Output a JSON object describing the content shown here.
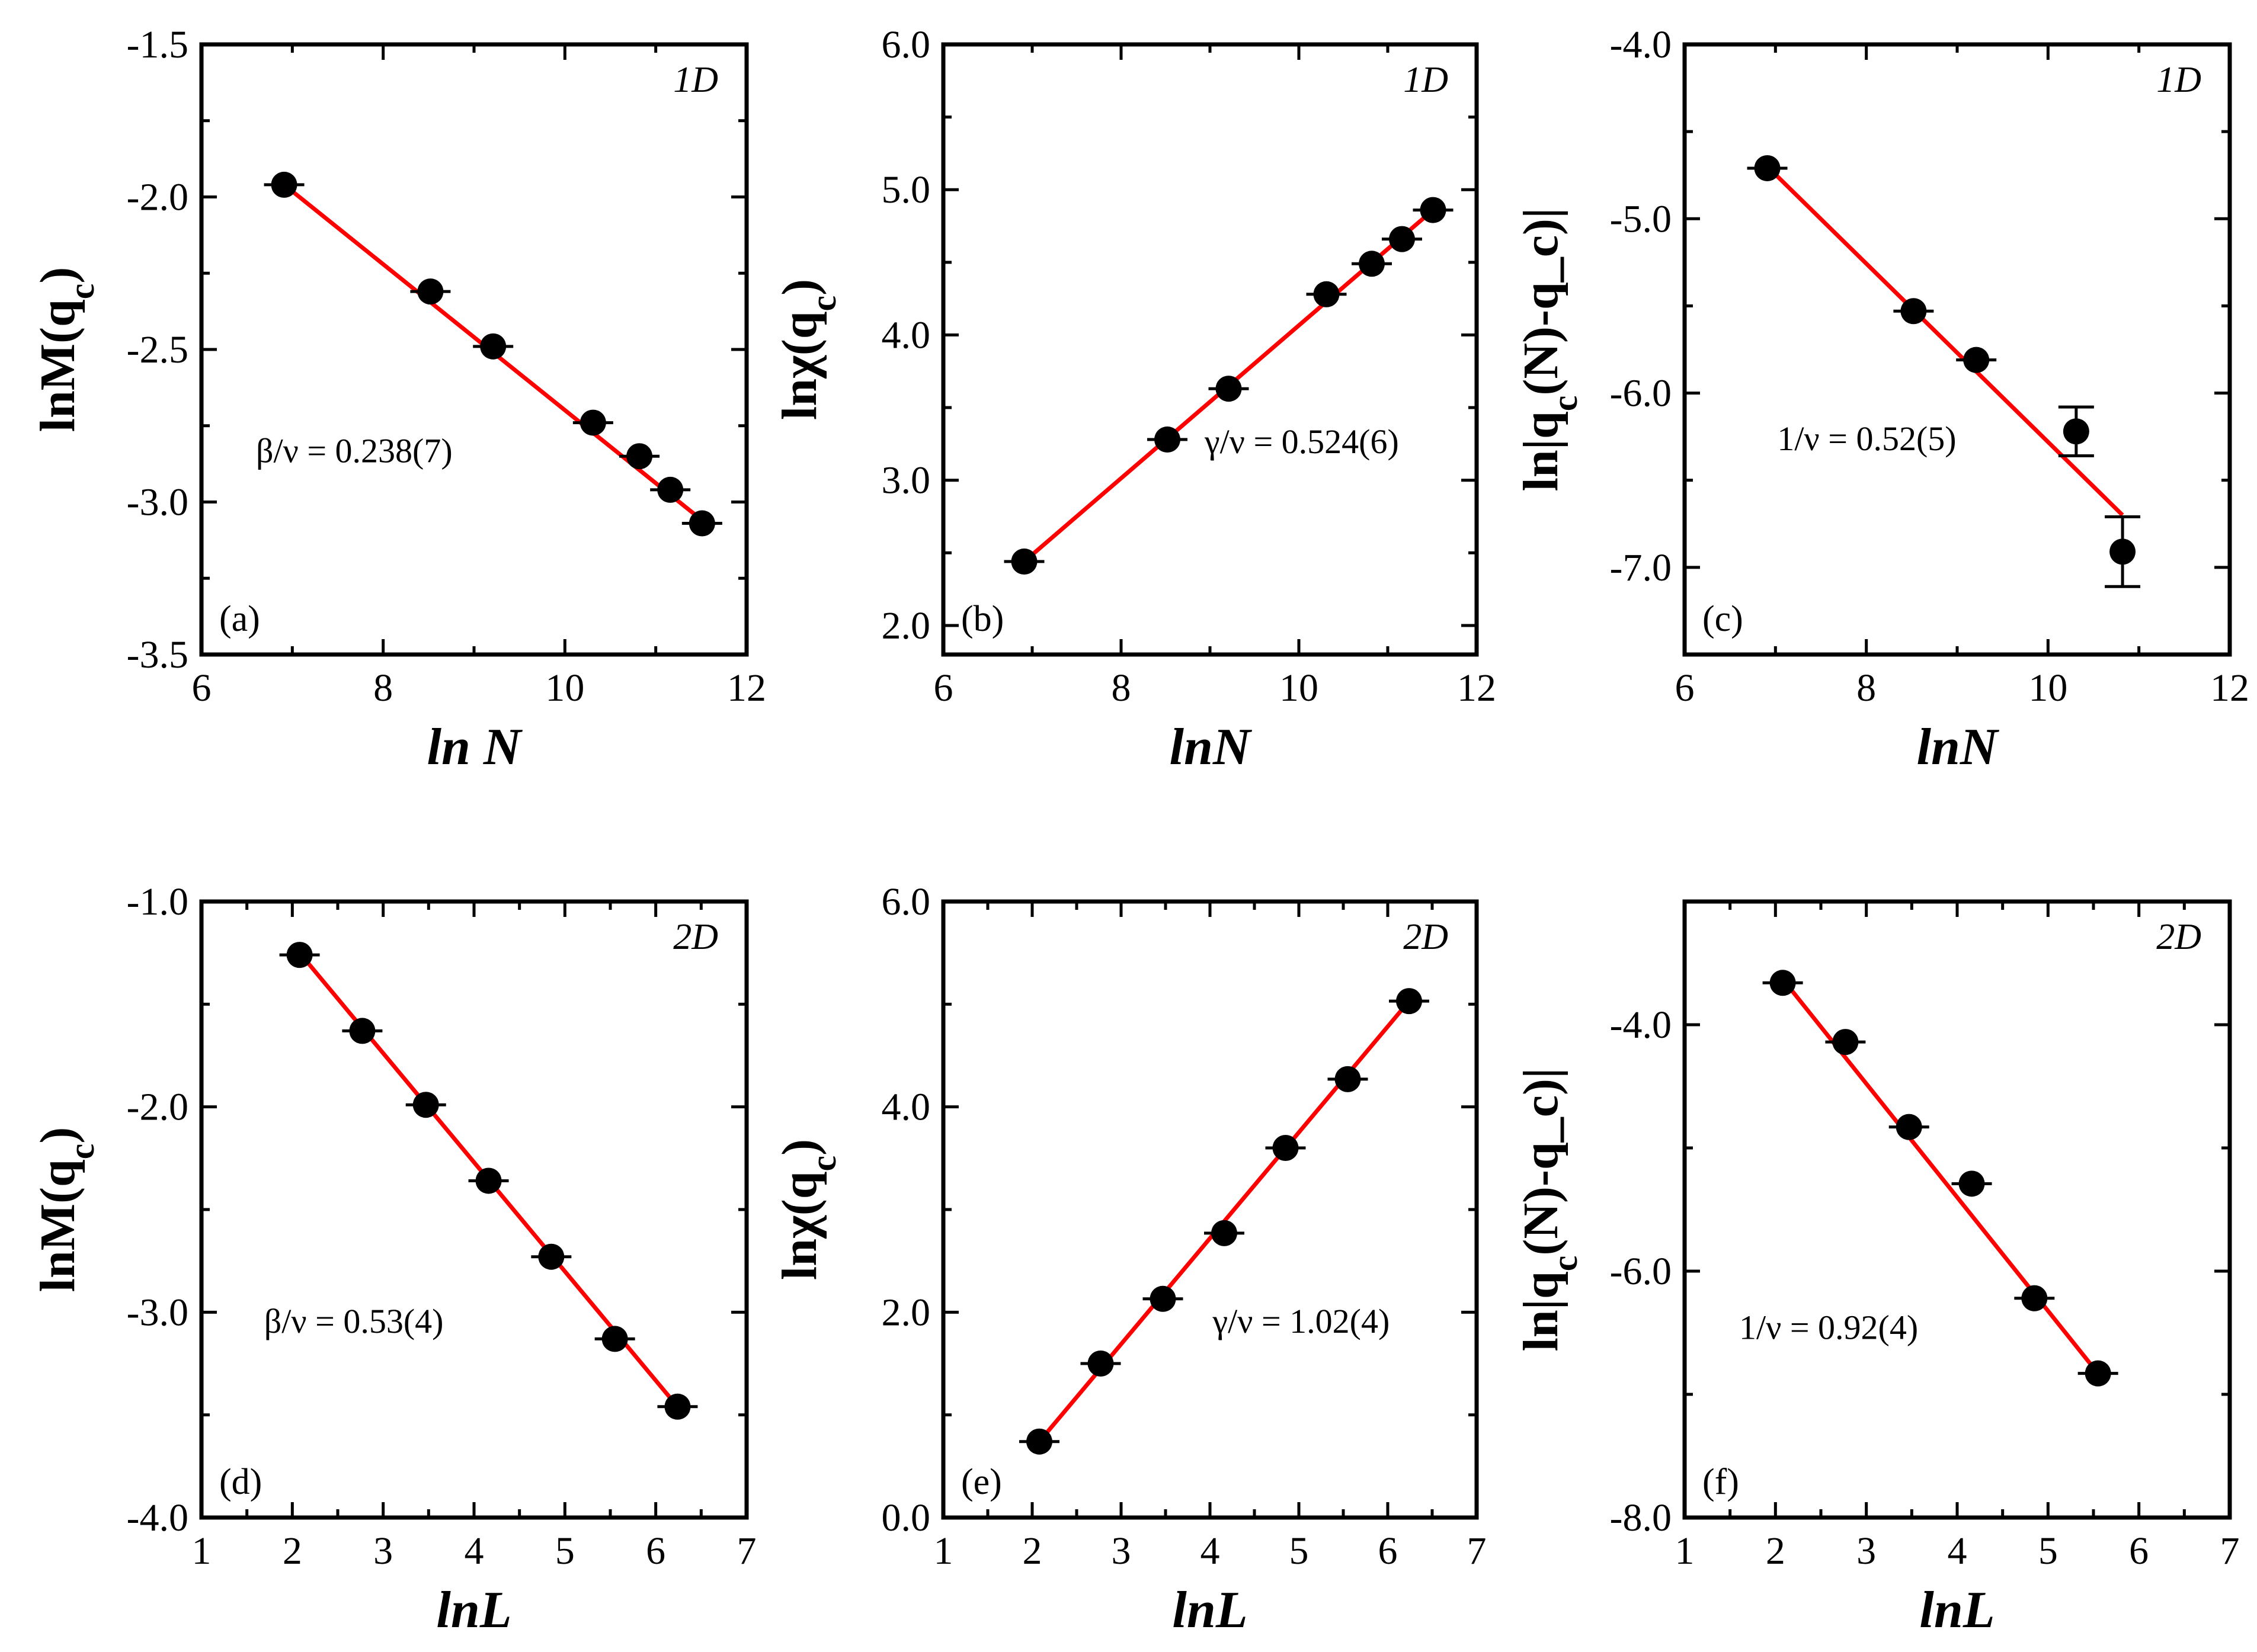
{
  "chart_data": [
    {
      "id": "a",
      "type": "scatter",
      "panel_label": "(a)",
      "dimension": "1D",
      "title": "",
      "xlabel": "ln N",
      "ylabel": "lnM(q_c)",
      "xlim": [
        6,
        12
      ],
      "ylim": [
        -3.5,
        -1.5
      ],
      "xticks": [
        6,
        8,
        10,
        12
      ],
      "xtick_labels": [
        "6",
        "8",
        "10",
        "12"
      ],
      "yticks": [
        -3.5,
        -3.0,
        -2.5,
        -2.0,
        -1.5
      ],
      "ytick_labels": [
        "-3.5",
        "-3.0",
        "-2.5",
        "-2.0",
        "-1.5"
      ],
      "annotation": "β/ν = 0.238(7)",
      "x": [
        6.91,
        8.52,
        9.21,
        10.31,
        10.82,
        11.16,
        11.51
      ],
      "y": [
        -1.96,
        -2.31,
        -2.49,
        -2.74,
        -2.85,
        -2.96,
        -3.07
      ],
      "yerr": [
        0,
        0,
        0,
        0,
        0,
        0,
        0
      ],
      "fit": {
        "x": [
          6.91,
          11.51
        ],
        "y": [
          -1.96,
          -3.06
        ]
      }
    },
    {
      "id": "b",
      "type": "scatter",
      "panel_label": "(b)",
      "dimension": "1D",
      "title": "",
      "xlabel": "lnN",
      "ylabel": "lnχ(q_c)",
      "xlim": [
        6,
        12
      ],
      "ylim": [
        1.8,
        6.0
      ],
      "xticks": [
        6,
        8,
        10,
        12
      ],
      "xtick_labels": [
        "6",
        "8",
        "10",
        "12"
      ],
      "yticks": [
        2.0,
        3.0,
        4.0,
        5.0,
        6.0
      ],
      "ytick_labels": [
        "2.0",
        "3.0",
        "4.0",
        "5.0",
        "6.0"
      ],
      "annotation": "γ/ν = 0.524(6)",
      "x": [
        6.91,
        8.52,
        9.21,
        10.31,
        10.82,
        11.16,
        11.51
      ],
      "y": [
        2.44,
        3.28,
        3.63,
        4.28,
        4.49,
        4.66,
        4.86
      ],
      "yerr": [
        0,
        0,
        0,
        0,
        0,
        0,
        0
      ],
      "fit": {
        "x": [
          6.91,
          11.51
        ],
        "y": [
          2.44,
          4.86
        ]
      }
    },
    {
      "id": "c",
      "type": "scatter",
      "panel_label": "(c)",
      "dimension": "1D",
      "title": "",
      "xlabel": "lnN",
      "ylabel": "ln|q_c(N)-q_c)|",
      "xlim": [
        6,
        12
      ],
      "ylim": [
        -7.5,
        -4.0
      ],
      "xticks": [
        6,
        8,
        10,
        12
      ],
      "xtick_labels": [
        "6",
        "8",
        "10",
        "12"
      ],
      "yticks": [
        -7.0,
        -6.0,
        -5.0,
        -4.0
      ],
      "ytick_labels": [
        "-7.0",
        "-6.0",
        "-5.0",
        "-4.0"
      ],
      "annotation": "1/ν = 0.52(5)",
      "x": [
        6.91,
        8.52,
        9.21,
        10.31,
        10.82
      ],
      "y": [
        -4.71,
        -5.53,
        -5.81,
        -6.22,
        -6.91
      ],
      "yerr": [
        0,
        0,
        0,
        0.14,
        0.2
      ],
      "fit": {
        "x": [
          6.91,
          10.82
        ],
        "y": [
          -4.7,
          -6.7
        ]
      }
    },
    {
      "id": "d",
      "type": "scatter",
      "panel_label": "(d)",
      "dimension": "2D",
      "title": "",
      "xlabel": "lnL",
      "ylabel": "lnM(q_c)",
      "xlim": [
        1,
        7
      ],
      "ylim": [
        -4.0,
        -1.0
      ],
      "xticks": [
        1,
        2,
        3,
        4,
        5,
        6,
        7
      ],
      "xtick_labels": [
        "1",
        "2",
        "3",
        "4",
        "5",
        "6",
        "7"
      ],
      "yticks": [
        -4.0,
        -3.0,
        -2.0,
        -1.0
      ],
      "ytick_labels": [
        "-4.0",
        "-3.0",
        "-2.0",
        "-1.0"
      ],
      "annotation": "β/ν = 0.53(4)",
      "x": [
        2.08,
        2.77,
        3.47,
        4.16,
        4.85,
        5.55,
        6.24
      ],
      "y": [
        -1.26,
        -1.63,
        -1.99,
        -2.36,
        -2.73,
        -3.13,
        -3.46
      ],
      "yerr": [
        0,
        0,
        0,
        0,
        0,
        0,
        0
      ],
      "fit": {
        "x": [
          2.08,
          6.24
        ],
        "y": [
          -1.25,
          -3.46
        ]
      }
    },
    {
      "id": "e",
      "type": "scatter",
      "panel_label": "(e)",
      "dimension": "2D",
      "title": "",
      "xlabel": "lnL",
      "ylabel": "lnχ(q_c)",
      "xlim": [
        1,
        7
      ],
      "ylim": [
        0.0,
        6.0
      ],
      "xticks": [
        1,
        2,
        3,
        4,
        5,
        6,
        7
      ],
      "xtick_labels": [
        "1",
        "2",
        "3",
        "4",
        "5",
        "6",
        "7"
      ],
      "yticks": [
        0.0,
        2.0,
        4.0,
        6.0
      ],
      "ytick_labels": [
        "0.0",
        "2.0",
        "4.0",
        "6.0"
      ],
      "annotation": "γ/ν = 1.02(4)",
      "x": [
        2.08,
        2.77,
        3.47,
        4.16,
        4.85,
        5.55,
        6.24
      ],
      "y": [
        0.74,
        1.5,
        2.13,
        2.77,
        3.6,
        4.27,
        5.03
      ],
      "yerr": [
        0,
        0,
        0,
        0,
        0,
        0,
        0
      ],
      "fit": {
        "x": [
          2.08,
          6.24
        ],
        "y": [
          0.74,
          5.03
        ]
      }
    },
    {
      "id": "f",
      "type": "scatter",
      "panel_label": "(f)",
      "dimension": "2D",
      "title": "",
      "xlabel": "lnL",
      "ylabel": "ln|q_c(N)-q_c)|",
      "xlim": [
        1,
        7
      ],
      "ylim": [
        -8.0,
        -3.0
      ],
      "xticks": [
        1,
        2,
        3,
        4,
        5,
        6,
        7
      ],
      "xtick_labels": [
        "1",
        "2",
        "3",
        "4",
        "5",
        "6",
        "7"
      ],
      "yticks": [
        -8.0,
        -6.0,
        -4.0
      ],
      "ytick_labels": [
        "-8.0",
        "-6.0",
        "-4.0"
      ],
      "annotation": "1/ν = 0.92(4)",
      "x": [
        2.08,
        2.77,
        3.47,
        4.16,
        4.85,
        5.55
      ],
      "y": [
        -3.66,
        -4.14,
        -4.83,
        -5.29,
        -6.22,
        -6.83
      ],
      "yerr": [
        0,
        0,
        0,
        0,
        0,
        0
      ],
      "fit": {
        "x": [
          2.08,
          5.55
        ],
        "y": [
          -3.63,
          -6.83
        ]
      }
    }
  ]
}
